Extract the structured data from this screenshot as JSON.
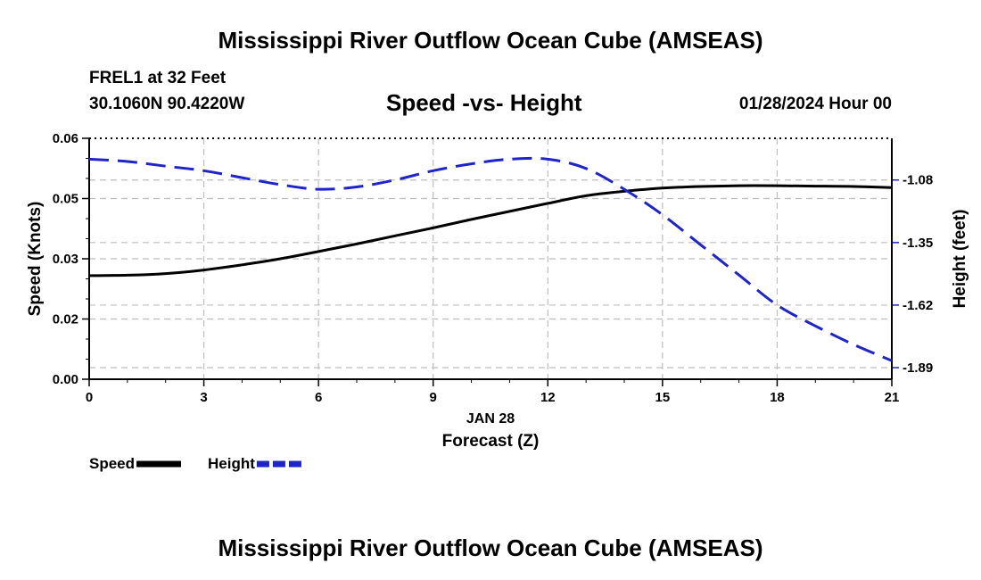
{
  "page": {
    "main_title": "Mississippi River Outflow Ocean Cube (AMSEAS)",
    "bottom_title": "Mississippi River Outflow Ocean Cube (AMSEAS)",
    "station": "FREL1 at 32 Feet",
    "coords": "30.1060N  90.4220W",
    "datetime": "01/28/2024 Hour 00"
  },
  "chart_data": {
    "type": "line",
    "title": "Speed -vs- Height",
    "xlabel": "Forecast (Z)",
    "date_label": "JAN 28",
    "ylabel_left": "Speed (Knots)",
    "ylabel_right": "Height (feet)",
    "xlim": [
      0,
      21
    ],
    "ylim_left": [
      0,
      0.06
    ],
    "ylim_right": [
      -1.94,
      -0.9
    ],
    "x_ticks": [
      0,
      3,
      6,
      9,
      12,
      15,
      18,
      21
    ],
    "y_left_ticks": [
      "0.00",
      "0.02",
      "0.03",
      "0.05",
      "0.06"
    ],
    "y_left_tick_values": [
      0.0,
      0.015,
      0.03,
      0.045,
      0.06
    ],
    "y_right_ticks": [
      "-1.08",
      "-1.35",
      "-1.62",
      "-1.89"
    ],
    "y_right_tick_values": [
      -1.08,
      -1.35,
      -1.62,
      -1.89
    ],
    "legend_position": "bottom-left",
    "series": [
      {
        "name": "Speed",
        "axis": "left",
        "color": "#000000",
        "style": "solid",
        "x": [
          0,
          1,
          2,
          3,
          4,
          5,
          6,
          7,
          8,
          9,
          10,
          11,
          12,
          13,
          14,
          15,
          16,
          17,
          18,
          19,
          20,
          21
        ],
        "values": [
          0.0258,
          0.0259,
          0.0263,
          0.0272,
          0.0285,
          0.03,
          0.0318,
          0.0337,
          0.0357,
          0.0377,
          0.0398,
          0.0418,
          0.0438,
          0.0457,
          0.0468,
          0.0476,
          0.048,
          0.0482,
          0.0482,
          0.0481,
          0.048,
          0.0477
        ]
      },
      {
        "name": "Height",
        "axis": "right",
        "color": "#1f24c8",
        "style": "dashed",
        "x": [
          0,
          1,
          2,
          3,
          4,
          5,
          6,
          7,
          8,
          9,
          10,
          11,
          12,
          13,
          14,
          15,
          16,
          17,
          18,
          19,
          20,
          21
        ],
        "values": [
          -0.99,
          -1.0,
          -1.02,
          -1.04,
          -1.07,
          -1.1,
          -1.12,
          -1.11,
          -1.08,
          -1.04,
          -1.01,
          -0.99,
          -0.99,
          -1.03,
          -1.12,
          -1.23,
          -1.36,
          -1.49,
          -1.62,
          -1.71,
          -1.79,
          -1.86
        ]
      }
    ]
  }
}
